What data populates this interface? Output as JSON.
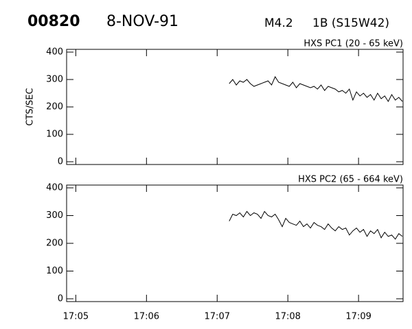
{
  "header": {
    "event": "00820",
    "date": "8-NOV-91",
    "class": "M4.2",
    "region": "1B (S15W42)"
  },
  "chart_data": [
    {
      "type": "line",
      "title": "HXS PC1 (20 - 65 keV)",
      "y_label": "CTS/SEC",
      "x": [
        2.17,
        2.22,
        2.27,
        2.32,
        2.37,
        2.42,
        2.47,
        2.52,
        2.57,
        2.62,
        2.67,
        2.72,
        2.77,
        2.82,
        2.87,
        2.92,
        2.97,
        3.02,
        3.07,
        3.12,
        3.17,
        3.22,
        3.27,
        3.32,
        3.37,
        3.42,
        3.47,
        3.52,
        3.57,
        3.62,
        3.67,
        3.72,
        3.77,
        3.82,
        3.87,
        3.92,
        3.97,
        4.02,
        4.07,
        4.12,
        4.17,
        4.22,
        4.27,
        4.32,
        4.37,
        4.42,
        4.47,
        4.52,
        4.57,
        4.62
      ],
      "values": [
        285,
        300,
        280,
        295,
        290,
        300,
        285,
        275,
        280,
        285,
        290,
        295,
        280,
        310,
        290,
        285,
        280,
        275,
        290,
        270,
        285,
        280,
        275,
        270,
        275,
        265,
        280,
        260,
        275,
        270,
        265,
        255,
        260,
        250,
        265,
        225,
        255,
        240,
        250,
        235,
        245,
        225,
        250,
        230,
        240,
        220,
        245,
        225,
        235,
        220
      ],
      "color": "#000000",
      "xlim": [
        -0.13,
        4.63
      ],
      "xticks": [
        0,
        1,
        2,
        3,
        4
      ],
      "ylim": [
        -10,
        410
      ],
      "yticks": [
        0,
        100,
        200,
        300,
        400
      ]
    },
    {
      "type": "line",
      "title": "HXS PC2 (65 - 664 keV)",
      "x": [
        2.17,
        2.22,
        2.27,
        2.32,
        2.37,
        2.42,
        2.47,
        2.52,
        2.57,
        2.62,
        2.67,
        2.72,
        2.77,
        2.82,
        2.87,
        2.92,
        2.97,
        3.02,
        3.07,
        3.12,
        3.17,
        3.22,
        3.27,
        3.32,
        3.37,
        3.42,
        3.47,
        3.52,
        3.57,
        3.62,
        3.67,
        3.72,
        3.77,
        3.82,
        3.87,
        3.92,
        3.97,
        4.02,
        4.07,
        4.12,
        4.17,
        4.22,
        4.27,
        4.32,
        4.37,
        4.42,
        4.47,
        4.52,
        4.57,
        4.62
      ],
      "values": [
        280,
        305,
        300,
        310,
        295,
        315,
        300,
        310,
        305,
        290,
        315,
        300,
        295,
        305,
        285,
        260,
        290,
        275,
        270,
        265,
        280,
        260,
        270,
        255,
        275,
        265,
        260,
        250,
        270,
        255,
        245,
        260,
        250,
        255,
        230,
        245,
        255,
        240,
        250,
        225,
        245,
        235,
        250,
        220,
        240,
        225,
        230,
        215,
        235,
        225
      ],
      "color": "#000000",
      "xlim": [
        -0.13,
        4.63
      ],
      "xticks": [
        {
          "value": 0,
          "label": "17:05"
        },
        {
          "value": 1,
          "label": "17:06"
        },
        {
          "value": 2,
          "label": "17:07"
        },
        {
          "value": 3,
          "label": "17:08"
        },
        {
          "value": 4,
          "label": "17:09"
        }
      ],
      "ylim": [
        -10,
        410
      ],
      "yticks": [
        0,
        100,
        200,
        300,
        400
      ]
    }
  ]
}
